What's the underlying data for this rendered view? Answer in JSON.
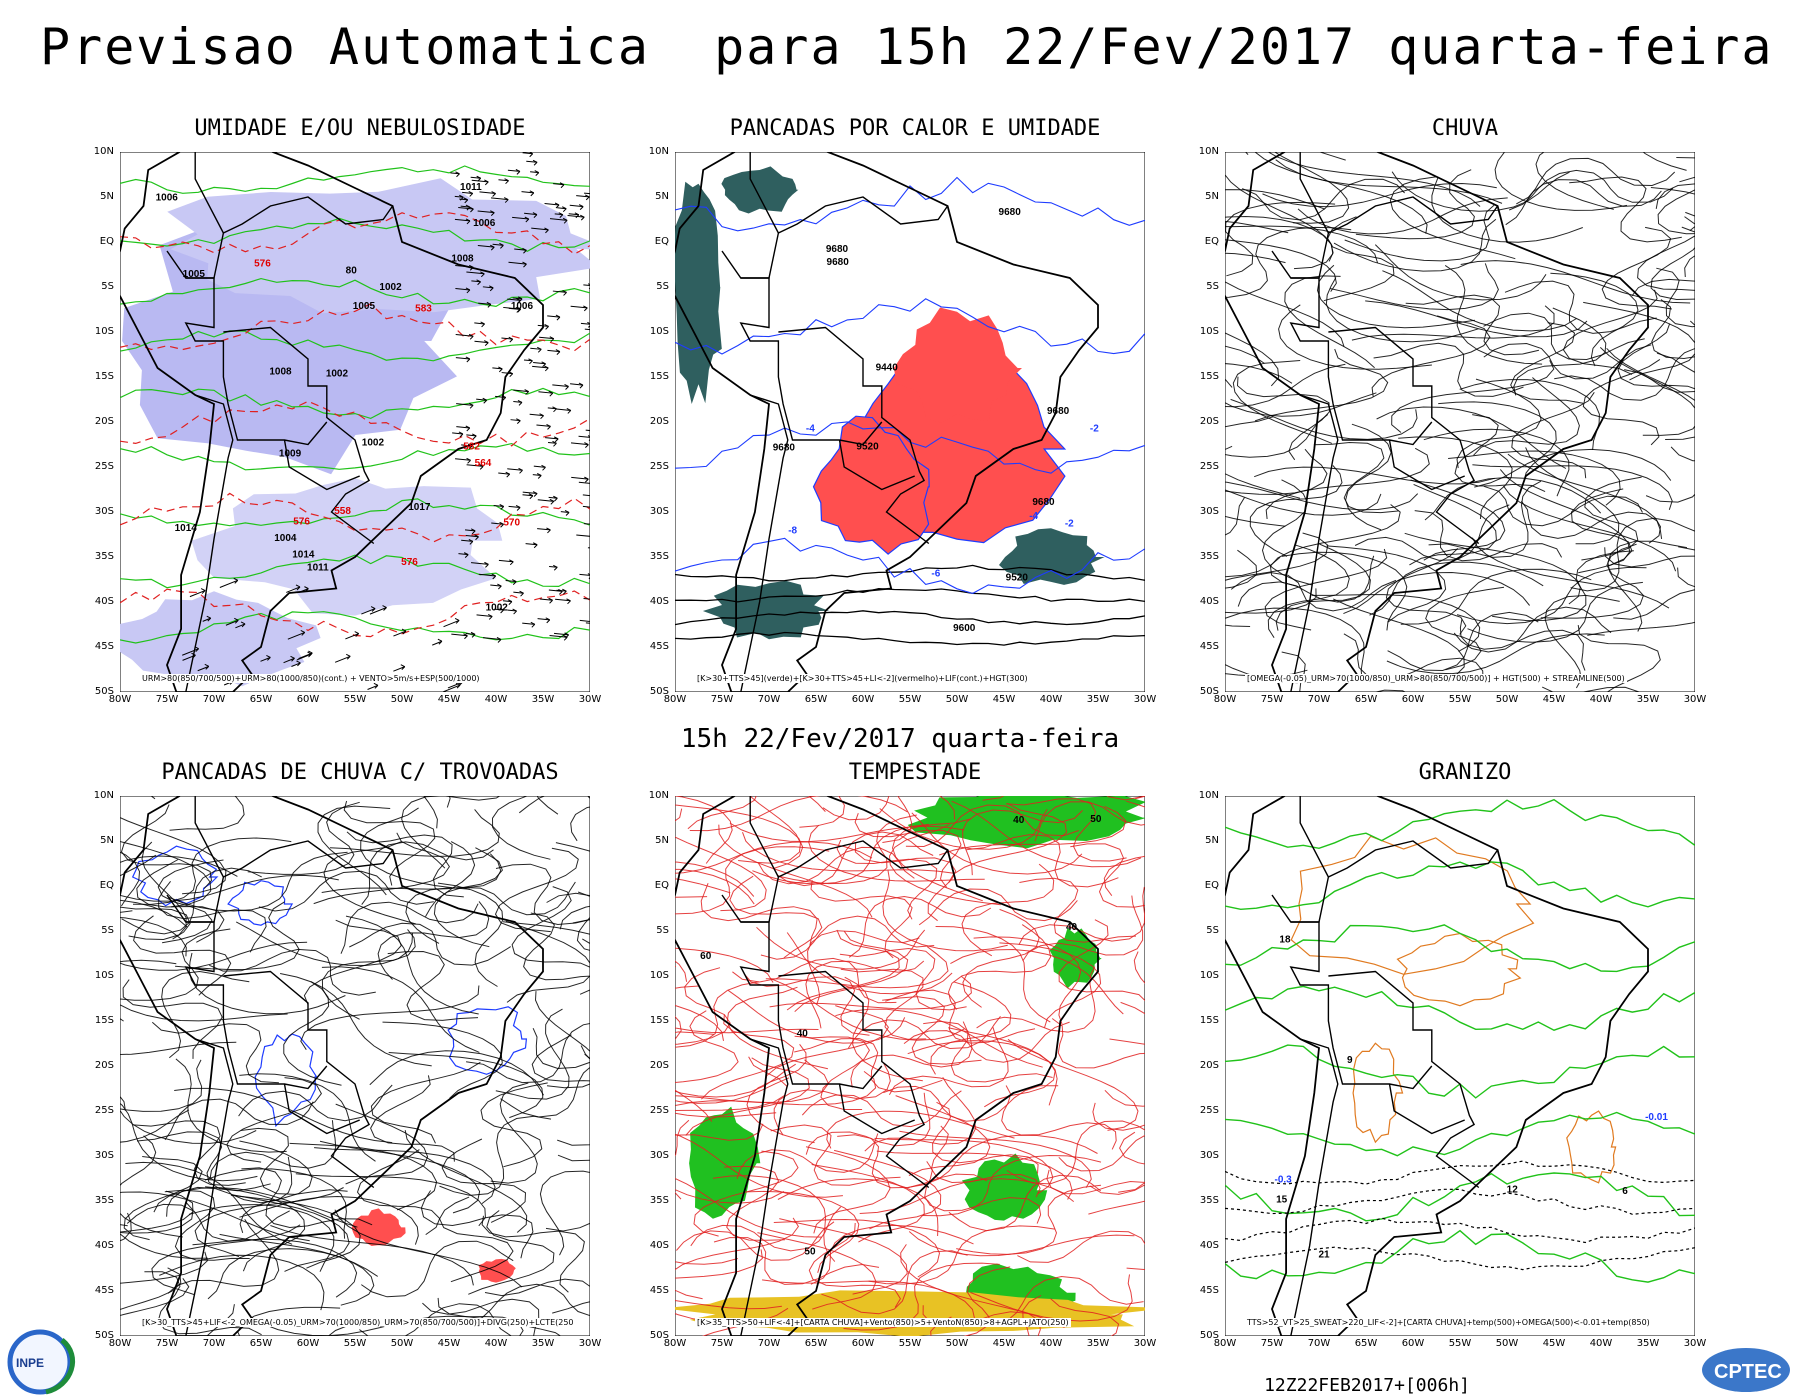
{
  "title": "Previsao Automatica  para 15h 22/Fev/2017 quarta-feira",
  "subtitle": "15h 22/Fev/2017 quarta-feira",
  "run_stamp": "12Z22FEB2017+[006h]",
  "lat_labels": [
    "10N",
    "5N",
    "EQ",
    "5S",
    "10S",
    "15S",
    "20S",
    "25S",
    "30S",
    "35S",
    "40S",
    "45S",
    "50S"
  ],
  "lon_labels": [
    "80W",
    "75W",
    "70W",
    "65W",
    "60W",
    "55W",
    "50W",
    "45W",
    "40W",
    "35W",
    "30W"
  ],
  "panels": [
    {
      "title": "UMIDADE E/OU NEBULOSIDADE",
      "caption": "URM>80(850/700/500)+URM>80(1000/850)(cont.) + VENTO>5m/s+ESP(500/1000)",
      "labels": [
        "1006",
        "1005",
        "1008",
        "1004",
        "1009",
        "1002",
        "1005",
        "1002",
        "1002",
        "1006",
        "1011",
        "1008",
        "1002",
        "1017",
        "1014",
        "1006",
        "1011",
        "1014",
        "576",
        "576",
        "582",
        "583",
        "570",
        "564",
        "558",
        "576",
        "80"
      ]
    },
    {
      "title": "PANCADAS POR CALOR E UMIDADE",
      "caption": "[K>30+TTS>45](verde)+[K>30+TTS>45+LI<-2](vermelho)+LIF(cont.)+HGT(300)",
      "labels": [
        "9680",
        "9680",
        "9680",
        "9680",
        "9680",
        "9680",
        "9600",
        "9520",
        "9440",
        "9520",
        "-2",
        "-2",
        "-4",
        "-4",
        "-6",
        "-8"
      ]
    },
    {
      "title": "CHUVA",
      "caption": "[OMEGA(-0.05)_URM>70(1000/850)_URM>80(850/700/500)] + HGT(500) + STREAMLINE(500)",
      "labels": []
    },
    {
      "title": "PANCADAS DE CHUVA C/ TROVOADAS",
      "caption": "[K>30_TTS>45+LIF<-2_OMEGA(-0.05)_URM>70(1000/850)_URM>70(850/700/500)]+DIVG(250)+LCTE(250)",
      "labels": []
    },
    {
      "title": "TEMPESTADE",
      "caption": "[K>35_TTS>50+LIF<-4]+[CARTA CHUVA]+Vento(850)>5+VentoN(850)>8+AGPL+JATO(250)",
      "labels": [
        "40",
        "50",
        "60",
        "40",
        "50",
        "40"
      ]
    },
    {
      "title": "GRANIZO",
      "caption": "TTS>52_VT>25_SWEAT>220_LIF<-2]+[CARTA CHUVA]+temp(500)+OMEGA(500)<-0.01+temp(850)",
      "labels": [
        "18",
        "21",
        "15",
        "12",
        "9",
        "6",
        "-0.3",
        "-0.01"
      ]
    }
  ]
}
